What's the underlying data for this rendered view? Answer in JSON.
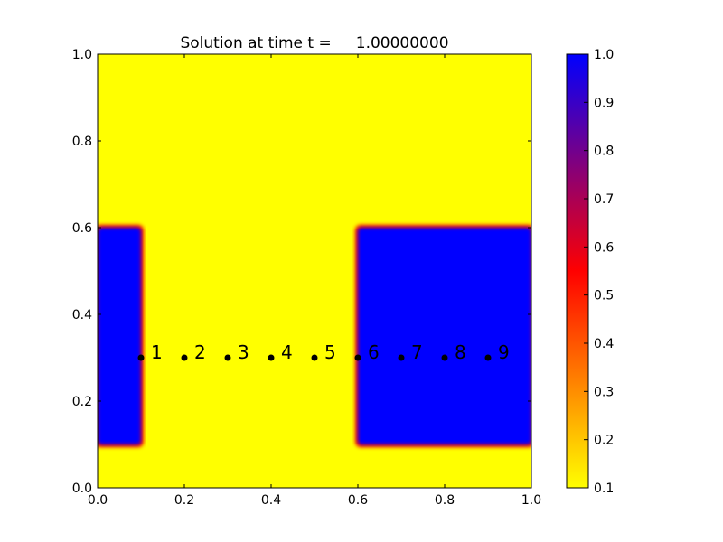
{
  "chart_data": {
    "type": "heatmap",
    "title": "Solution at time t =     1.00000000",
    "xlim": [
      0.0,
      1.0
    ],
    "ylim": [
      0.0,
      1.0
    ],
    "xticks": [
      "0.0",
      "0.2",
      "0.4",
      "0.6",
      "0.8",
      "1.0"
    ],
    "yticks": [
      "0.0",
      "0.2",
      "0.4",
      "0.6",
      "0.8",
      "1.0"
    ],
    "grid": false,
    "background_value": 0.1,
    "regions": [
      {
        "x0": 0.0,
        "x1": 0.1,
        "y0": 0.1,
        "y1": 0.6,
        "value": 1.0
      },
      {
        "x0": 0.6,
        "x1": 1.0,
        "y0": 0.1,
        "y1": 0.6,
        "value": 1.0
      }
    ],
    "colorbar": {
      "min": 0.1,
      "max": 1.0,
      "ticks": [
        "0.1",
        "0.2",
        "0.3",
        "0.4",
        "0.5",
        "0.6",
        "0.7",
        "0.8",
        "0.9",
        "1.0"
      ],
      "colors": [
        "#ffff00",
        "#ff0000",
        "#0000ff"
      ]
    },
    "points": [
      {
        "x": 0.1,
        "y": 0.3,
        "label": "1"
      },
      {
        "x": 0.2,
        "y": 0.3,
        "label": "2"
      },
      {
        "x": 0.3,
        "y": 0.3,
        "label": "3"
      },
      {
        "x": 0.4,
        "y": 0.3,
        "label": "4"
      },
      {
        "x": 0.5,
        "y": 0.3,
        "label": "5"
      },
      {
        "x": 0.6,
        "y": 0.3,
        "label": "6"
      },
      {
        "x": 0.7,
        "y": 0.3,
        "label": "7"
      },
      {
        "x": 0.8,
        "y": 0.3,
        "label": "8"
      },
      {
        "x": 0.9,
        "y": 0.3,
        "label": "9"
      }
    ]
  }
}
